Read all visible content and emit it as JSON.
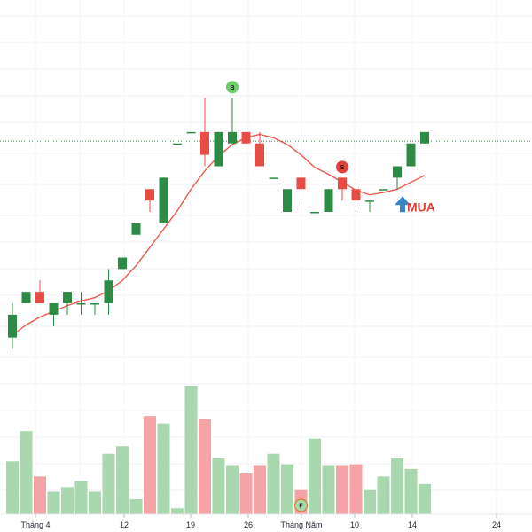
{
  "chart_data": {
    "type": "candlestick",
    "x_tick_labels": [
      "Tháng 4",
      "12",
      "19",
      "26",
      "Tháng Năm",
      "10",
      "14",
      "24"
    ],
    "colors": {
      "up": "#2e8b45",
      "down": "#e94c45",
      "volume_up": "#a9d8ae",
      "volume_down": "#f5a3a5",
      "ma": "#ef5a4d",
      "price_line": "#2e8b45",
      "buy_arrow": "#3a84c9",
      "buy_text": "#e0413b",
      "badge_b": "#6ccf67",
      "badge_s": "#e0413b",
      "badge_e": "#a9d8ae"
    },
    "candles": [
      {
        "o": 93,
        "h": 96,
        "l": 92,
        "c": 95
      },
      {
        "o": 96,
        "h": 97,
        "l": 96,
        "c": 97
      },
      {
        "o": 97,
        "h": 98,
        "l": 96,
        "c": 96
      },
      {
        "o": 95,
        "h": 96,
        "l": 94,
        "c": 96
      },
      {
        "o": 96,
        "h": 97,
        "l": 95,
        "c": 97
      },
      {
        "o": 96,
        "h": 97,
        "l": 95,
        "c": 96
      },
      {
        "o": 96,
        "h": 96,
        "l": 95,
        "c": 96
      },
      {
        "o": 96,
        "h": 99,
        "l": 95,
        "c": 98
      },
      {
        "o": 99,
        "h": 100,
        "l": 99,
        "c": 100
      },
      {
        "o": 102,
        "h": 103,
        "l": 102,
        "c": 103
      },
      {
        "o": 106,
        "h": 106,
        "l": 104,
        "c": 105
      },
      {
        "o": 103,
        "h": 107,
        "l": 103,
        "c": 107
      },
      {
        "o": 110,
        "h": 110,
        "l": 110,
        "c": 110
      },
      {
        "o": 111,
        "h": 111,
        "l": 111,
        "c": 111
      },
      {
        "o": 111,
        "h": 114,
        "l": 108,
        "c": 109
      },
      {
        "o": 108,
        "h": 111,
        "l": 108,
        "c": 111
      },
      {
        "o": 110,
        "h": 114,
        "l": 110,
        "c": 111
      },
      {
        "o": 111,
        "h": 111,
        "l": 110,
        "c": 110
      },
      {
        "o": 110,
        "h": 111,
        "l": 108,
        "c": 108
      },
      {
        "o": 107,
        "h": 107,
        "l": 107,
        "c": 107
      },
      {
        "o": 104,
        "h": 106,
        "l": 104,
        "c": 106
      },
      {
        "o": 107,
        "h": 107,
        "l": 105,
        "c": 106
      },
      {
        "o": 104,
        "h": 104,
        "l": 104,
        "c": 104
      },
      {
        "o": 104,
        "h": 106,
        "l": 104,
        "c": 106
      },
      {
        "o": 107,
        "h": 107,
        "l": 105,
        "c": 106
      },
      {
        "o": 106,
        "h": 107,
        "l": 104,
        "c": 105
      },
      {
        "o": 105,
        "h": 105,
        "l": 104,
        "c": 105
      },
      {
        "o": 106,
        "h": 106,
        "l": 106,
        "c": 106
      },
      {
        "o": 107,
        "h": 108,
        "l": 106,
        "c": 108
      },
      {
        "o": 108,
        "h": 110,
        "l": 108,
        "c": 110
      },
      {
        "o": 110,
        "h": 111,
        "l": 110,
        "c": 111
      }
    ],
    "volumes": [
      35,
      55,
      25,
      15,
      18,
      22,
      15,
      40,
      45,
      10,
      65,
      60,
      4,
      85,
      63,
      37,
      32,
      27,
      32,
      40,
      33,
      16,
      50,
      32,
      32,
      33,
      16,
      25,
      37,
      30,
      20
    ],
    "ma": [
      93.2,
      94.1,
      94.8,
      95.3,
      95.8,
      96.2,
      96.5,
      97.1,
      98.0,
      99.3,
      100.9,
      102.5,
      104.1,
      106.0,
      107.6,
      108.9,
      109.9,
      110.5,
      110.8,
      110.5,
      109.9,
      109.0,
      107.9,
      107.3,
      106.6,
      105.9,
      105.5,
      105.7,
      106.0,
      106.6,
      107.2
    ],
    "price_line": 110.2,
    "signals": [
      {
        "index": 16,
        "label": "B",
        "kind": "badge_b"
      },
      {
        "index": 24,
        "label": "S",
        "kind": "badge_s"
      },
      {
        "index": 21,
        "label": "F",
        "kind": "badge_e"
      }
    ],
    "buy_marker": {
      "index": 28,
      "text": "MUA"
    }
  }
}
